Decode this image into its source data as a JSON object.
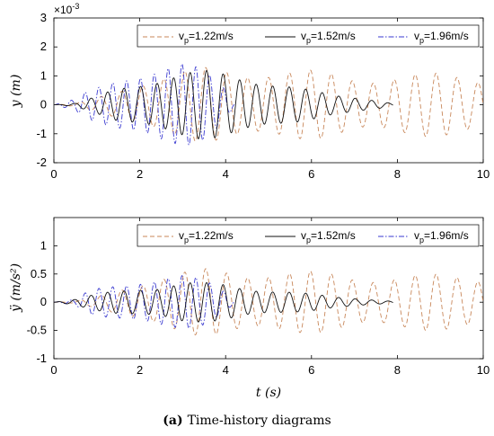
{
  "caption": {
    "label": "(a)",
    "text": "Time-history diagrams"
  },
  "colors": {
    "v122": "#c8875a",
    "v152": "#111111",
    "v196": "#3a3ad0",
    "axis": "#000000",
    "legend_border": "#000000"
  },
  "chart_data": [
    {
      "type": "line",
      "xlabel": "",
      "ylabel": "y (m)",
      "y_multiplier": "×10",
      "y_exponent": "-3",
      "xlim": [
        0,
        10
      ],
      "ylim": [
        -2,
        3
      ],
      "xticks": [
        0,
        2,
        4,
        6,
        8,
        10
      ],
      "yticks": [
        -2,
        -1,
        0,
        1,
        2,
        3
      ],
      "legend": {
        "placement": "top",
        "entries": [
          {
            "prefix": "v",
            "sub": "p",
            "suffix": "=1.22m/s"
          },
          {
            "prefix": "v",
            "sub": "p",
            "suffix": "=1.52m/s"
          },
          {
            "prefix": "v",
            "sub": "p",
            "suffix": "=1.96m/s"
          }
        ]
      },
      "series": [
        {
          "style": "dashed",
          "t_end": 10.0,
          "freq": 2.05,
          "env": [
            [
              0,
              0.0
            ],
            [
              0.5,
              0.05
            ],
            [
              1,
              0.25
            ],
            [
              1.5,
              0.55
            ],
            [
              2,
              0.9
            ],
            [
              2.5,
              1.1
            ],
            [
              3,
              1.2
            ],
            [
              3.5,
              1.3
            ],
            [
              4,
              1.3
            ],
            [
              5,
              1.3
            ],
            [
              6,
              1.2
            ],
            [
              7,
              1.05
            ],
            [
              8,
              1.1
            ],
            [
              9,
              1.1
            ],
            [
              10,
              1.05
            ]
          ]
        },
        {
          "style": "solid",
          "t_end": 7.9,
          "freq": 2.6,
          "env": [
            [
              0,
              0.0
            ],
            [
              0.5,
              0.05
            ],
            [
              1,
              0.3
            ],
            [
              1.5,
              0.7
            ],
            [
              2,
              0.9
            ],
            [
              2.5,
              1.0
            ],
            [
              3,
              1.1
            ],
            [
              3.5,
              1.2
            ],
            [
              4,
              1.2
            ],
            [
              4.5,
              1.1
            ],
            [
              5,
              0.9
            ],
            [
              5.5,
              0.7
            ],
            [
              6,
              0.5
            ],
            [
              6.5,
              0.35
            ],
            [
              7,
              0.3
            ],
            [
              7.5,
              0.2
            ],
            [
              7.9,
              0.05
            ]
          ]
        },
        {
          "style": "dashdot",
          "t_end": 4.2,
          "freq": 3.1,
          "env": [
            [
              0,
              0.0
            ],
            [
              0.5,
              0.2
            ],
            [
              0.8,
              0.5
            ],
            [
              1,
              0.6
            ],
            [
              1.5,
              1.0
            ],
            [
              2,
              1.3
            ],
            [
              2.5,
              1.5
            ],
            [
              3,
              1.5
            ],
            [
              3.5,
              1.2
            ],
            [
              4,
              0.6
            ],
            [
              4.2,
              0.05
            ]
          ]
        }
      ]
    },
    {
      "type": "line",
      "xlabel": "t (s)",
      "ylabel": "ÿ (m/s²)",
      "xlim": [
        0,
        10
      ],
      "ylim": [
        -1,
        1.5
      ],
      "xticks": [
        0,
        2,
        4,
        6,
        8,
        10
      ],
      "yticks": [
        -1,
        -0.5,
        0,
        0.5,
        1
      ],
      "legend": {
        "placement": "top",
        "entries": [
          {
            "prefix": "v",
            "sub": "p",
            "suffix": "=1.22m/s"
          },
          {
            "prefix": "v",
            "sub": "p",
            "suffix": "=1.52m/s"
          },
          {
            "prefix": "v",
            "sub": "p",
            "suffix": "=1.96m/s"
          }
        ]
      },
      "series": [
        {
          "style": "dashed",
          "t_end": 10.0,
          "freq": 2.05,
          "env": [
            [
              0,
              0.0
            ],
            [
              0.5,
              0.02
            ],
            [
              1,
              0.1
            ],
            [
              1.5,
              0.25
            ],
            [
              2,
              0.4
            ],
            [
              2.5,
              0.5
            ],
            [
              3,
              0.55
            ],
            [
              3.5,
              0.6
            ],
            [
              4,
              0.6
            ],
            [
              5,
              0.6
            ],
            [
              6,
              0.55
            ],
            [
              7,
              0.5
            ],
            [
              8,
              0.5
            ],
            [
              9,
              0.5
            ],
            [
              10,
              0.5
            ]
          ]
        },
        {
          "style": "solid",
          "t_end": 7.9,
          "freq": 2.6,
          "env": [
            [
              0,
              0.0
            ],
            [
              0.5,
              0.05
            ],
            [
              1,
              0.15
            ],
            [
              1.5,
              0.25
            ],
            [
              2,
              0.3
            ],
            [
              2.5,
              0.3
            ],
            [
              3,
              0.35
            ],
            [
              3.5,
              0.35
            ],
            [
              4,
              0.35
            ],
            [
              4.5,
              0.3
            ],
            [
              5,
              0.25
            ],
            [
              5.5,
              0.2
            ],
            [
              6,
              0.15
            ],
            [
              6.5,
              0.1
            ],
            [
              7,
              0.08
            ],
            [
              7.5,
              0.05
            ],
            [
              7.9,
              0.02
            ]
          ]
        },
        {
          "style": "dashdot",
          "t_end": 4.2,
          "freq": 3.1,
          "env": [
            [
              0,
              0.0
            ],
            [
              0.5,
              0.05
            ],
            [
              0.8,
              0.2
            ],
            [
              1,
              0.25
            ],
            [
              1.5,
              0.35
            ],
            [
              2,
              0.45
            ],
            [
              2.5,
              0.5
            ],
            [
              3,
              0.5
            ],
            [
              3.5,
              0.4
            ],
            [
              4,
              0.2
            ],
            [
              4.2,
              0.02
            ]
          ]
        }
      ]
    }
  ]
}
